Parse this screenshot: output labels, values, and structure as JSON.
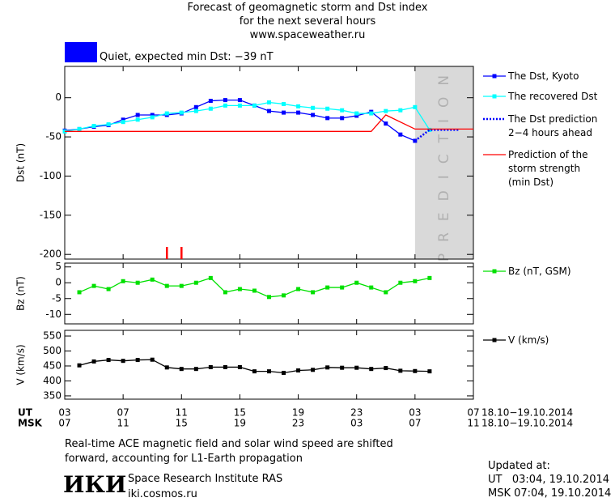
{
  "header": {
    "title_lines": [
      "Forecast of geomagnetic storm and Dst index",
      "for the next several hours"
    ],
    "url": "www.spaceweather.ru"
  },
  "status": {
    "color": "#0000ff",
    "text": "Quiet, expected min Dst: −39 nT"
  },
  "chart_data": [
    {
      "type": "line",
      "y_label": "Dst (nT)",
      "xlim": [
        0,
        28
      ],
      "ylim": [
        -206,
        40
      ],
      "yticks": [
        -200,
        -150,
        -100,
        -50,
        0
      ],
      "shade": {
        "from": 24,
        "to": 28,
        "label": "PREDICTION",
        "color": "#d9d9d9"
      },
      "storm_markers": {
        "x": [
          7,
          8
        ],
        "color": "#ff0000"
      },
      "series": [
        {
          "name": "The Dst, Kyoto",
          "color": "#0000ff",
          "marker": "square",
          "line_style": "solid",
          "x": [
            0,
            1,
            2,
            3,
            4,
            5,
            6,
            7,
            8,
            9,
            10,
            11,
            12,
            13,
            14,
            15,
            16,
            17,
            18,
            19,
            20,
            21,
            22,
            23,
            24
          ],
          "values": [
            -42,
            -40,
            -37,
            -35,
            -28,
            -22,
            -22,
            -22,
            -20,
            -12,
            -4,
            -3,
            -3,
            -10,
            -17,
            -19,
            -19,
            -22,
            -26,
            -26,
            -23,
            -18,
            -33,
            -47,
            -55
          ]
        },
        {
          "name": "The recovered Dst",
          "color": "#00ffff",
          "marker": "square",
          "line_style": "solid",
          "x": [
            0,
            1,
            2,
            3,
            4,
            5,
            6,
            7,
            8,
            9,
            10,
            11,
            12,
            13,
            14,
            15,
            16,
            17,
            18,
            19,
            20,
            21,
            22,
            23,
            24,
            25
          ],
          "values": [
            -43,
            -40,
            -36,
            -34,
            -31,
            -28,
            -25,
            -20,
            -19,
            -17,
            -14,
            -10,
            -10,
            -10,
            -6,
            -8,
            -11,
            -13,
            -14,
            -16,
            -20,
            -20,
            -17,
            -16,
            -12,
            -41
          ]
        },
        {
          "name": "The Dst prediction\n2−4 hours ahead",
          "color": "#0000ff",
          "marker": "none",
          "line_style": "dotted",
          "x": [
            24,
            25,
            27
          ],
          "values": [
            -55,
            -41,
            -41
          ]
        },
        {
          "name": "Prediction of the\nstorm strength\n(min Dst)",
          "color": "#ff0000",
          "marker": "none",
          "line_style": "solid",
          "x": [
            0,
            21,
            22,
            24,
            28
          ],
          "values": [
            -43,
            -43,
            -22,
            -40,
            -40
          ]
        }
      ]
    },
    {
      "type": "line",
      "y_label": "Bz (nT)",
      "xlim": [
        0,
        28
      ],
      "ylim": [
        -13,
        6.2
      ],
      "yticks": [
        -10,
        -5,
        0,
        5
      ],
      "series": [
        {
          "name": "Bz (nT, GSM)",
          "color": "#00e000",
          "marker": "square",
          "line_style": "solid",
          "x": [
            1,
            2,
            3,
            4,
            5,
            6,
            7,
            8,
            9,
            10,
            11,
            12,
            13,
            14,
            15,
            16,
            17,
            18,
            19,
            20,
            21,
            22,
            23,
            24,
            25
          ],
          "values": [
            -3,
            -1,
            -2,
            0.5,
            0,
            1,
            -1,
            -1,
            0,
            1.5,
            -3,
            -2,
            -2.5,
            -4.5,
            -4,
            -2,
            -3,
            -1.5,
            -1.5,
            0,
            -1.5,
            -3,
            0,
            0.5,
            1.5
          ]
        }
      ]
    },
    {
      "type": "line",
      "y_label": "V (km/s)",
      "xlim": [
        0,
        28
      ],
      "ylim": [
        339,
        569
      ],
      "yticks": [
        350,
        400,
        450,
        500,
        550
      ],
      "xticks": [
        {
          "value": 0,
          "label": "03"
        },
        {
          "value": 4,
          "label": "07"
        },
        {
          "value": 8,
          "label": "11"
        },
        {
          "value": 12,
          "label": "15"
        },
        {
          "value": 16,
          "label": "19"
        },
        {
          "value": 20,
          "label": "23"
        },
        {
          "value": 24,
          "label": "03"
        },
        {
          "value": 28,
          "label": "07"
        }
      ],
      "msk_ticks": [
        {
          "value": 0,
          "label": "07"
        },
        {
          "value": 4,
          "label": "11"
        },
        {
          "value": 8,
          "label": "15"
        },
        {
          "value": 12,
          "label": "19"
        },
        {
          "value": 16,
          "label": "23"
        },
        {
          "value": 20,
          "label": "03"
        },
        {
          "value": 24,
          "label": "07"
        },
        {
          "value": 28,
          "label": "11"
        }
      ],
      "ut_label": "UT",
      "msk_label": "MSK",
      "date_ut": "18.10−19.10.2014",
      "date_msk": "18.10−19.10.2014",
      "series": [
        {
          "name": "V (km/s)",
          "color": "#000000",
          "marker": "square",
          "line_style": "solid",
          "x": [
            1,
            2,
            3,
            4,
            5,
            6,
            7,
            8,
            9,
            10,
            11,
            12,
            13,
            14,
            15,
            16,
            17,
            18,
            19,
            20,
            21,
            22,
            23,
            24,
            25
          ],
          "values": [
            452,
            465,
            470,
            467,
            470,
            471,
            445,
            440,
            440,
            446,
            446,
            446,
            432,
            432,
            427,
            435,
            437,
            445,
            444,
            444,
            440,
            443,
            434,
            433,
            432
          ]
        }
      ]
    }
  ],
  "footer": {
    "note": "Real-time ACE magnetic field and solar wind speed are shifted\nforward, accounting for L1-Earth propagation",
    "logo": "ИКИ",
    "institute": "Space Research Institute RAS",
    "site": "iki.cosmos.ru",
    "updated_label": "Updated at:",
    "updated_ut": "UT   03:04, 19.10.2014",
    "updated_msk": "MSK 07:04, 19.10.2014"
  }
}
